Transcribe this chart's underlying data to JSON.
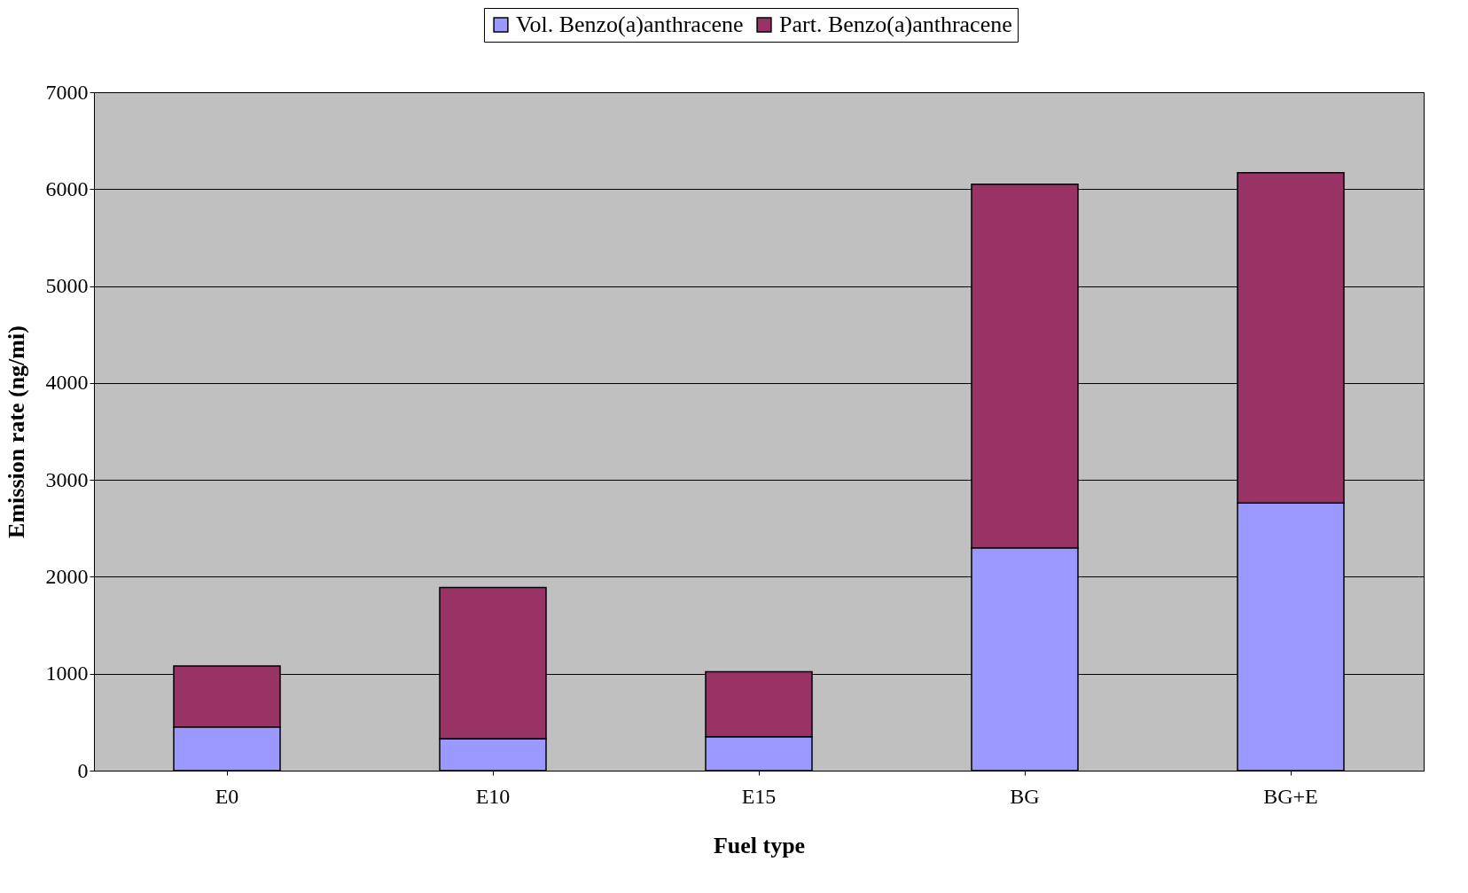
{
  "chart_data": {
    "type": "bar",
    "stacked": true,
    "xlabel": "Fuel type",
    "ylabel": "Emission rate (ng/mi)",
    "categories": [
      "E0",
      "E10",
      "E15",
      "BG",
      "BG+E"
    ],
    "series": [
      {
        "name": "Vol. Benzo(a)anthracene",
        "color": "#9999ff",
        "values": [
          450,
          330,
          350,
          2300,
          2760
        ]
      },
      {
        "name": "Part. Benzo(a)anthracene",
        "color": "#993366",
        "values": [
          630,
          1560,
          670,
          3750,
          3410
        ]
      }
    ],
    "ylim": [
      0,
      7000
    ],
    "yticks": [
      0,
      1000,
      2000,
      3000,
      4000,
      5000,
      6000,
      7000
    ],
    "grid": "y",
    "legend": "top"
  }
}
